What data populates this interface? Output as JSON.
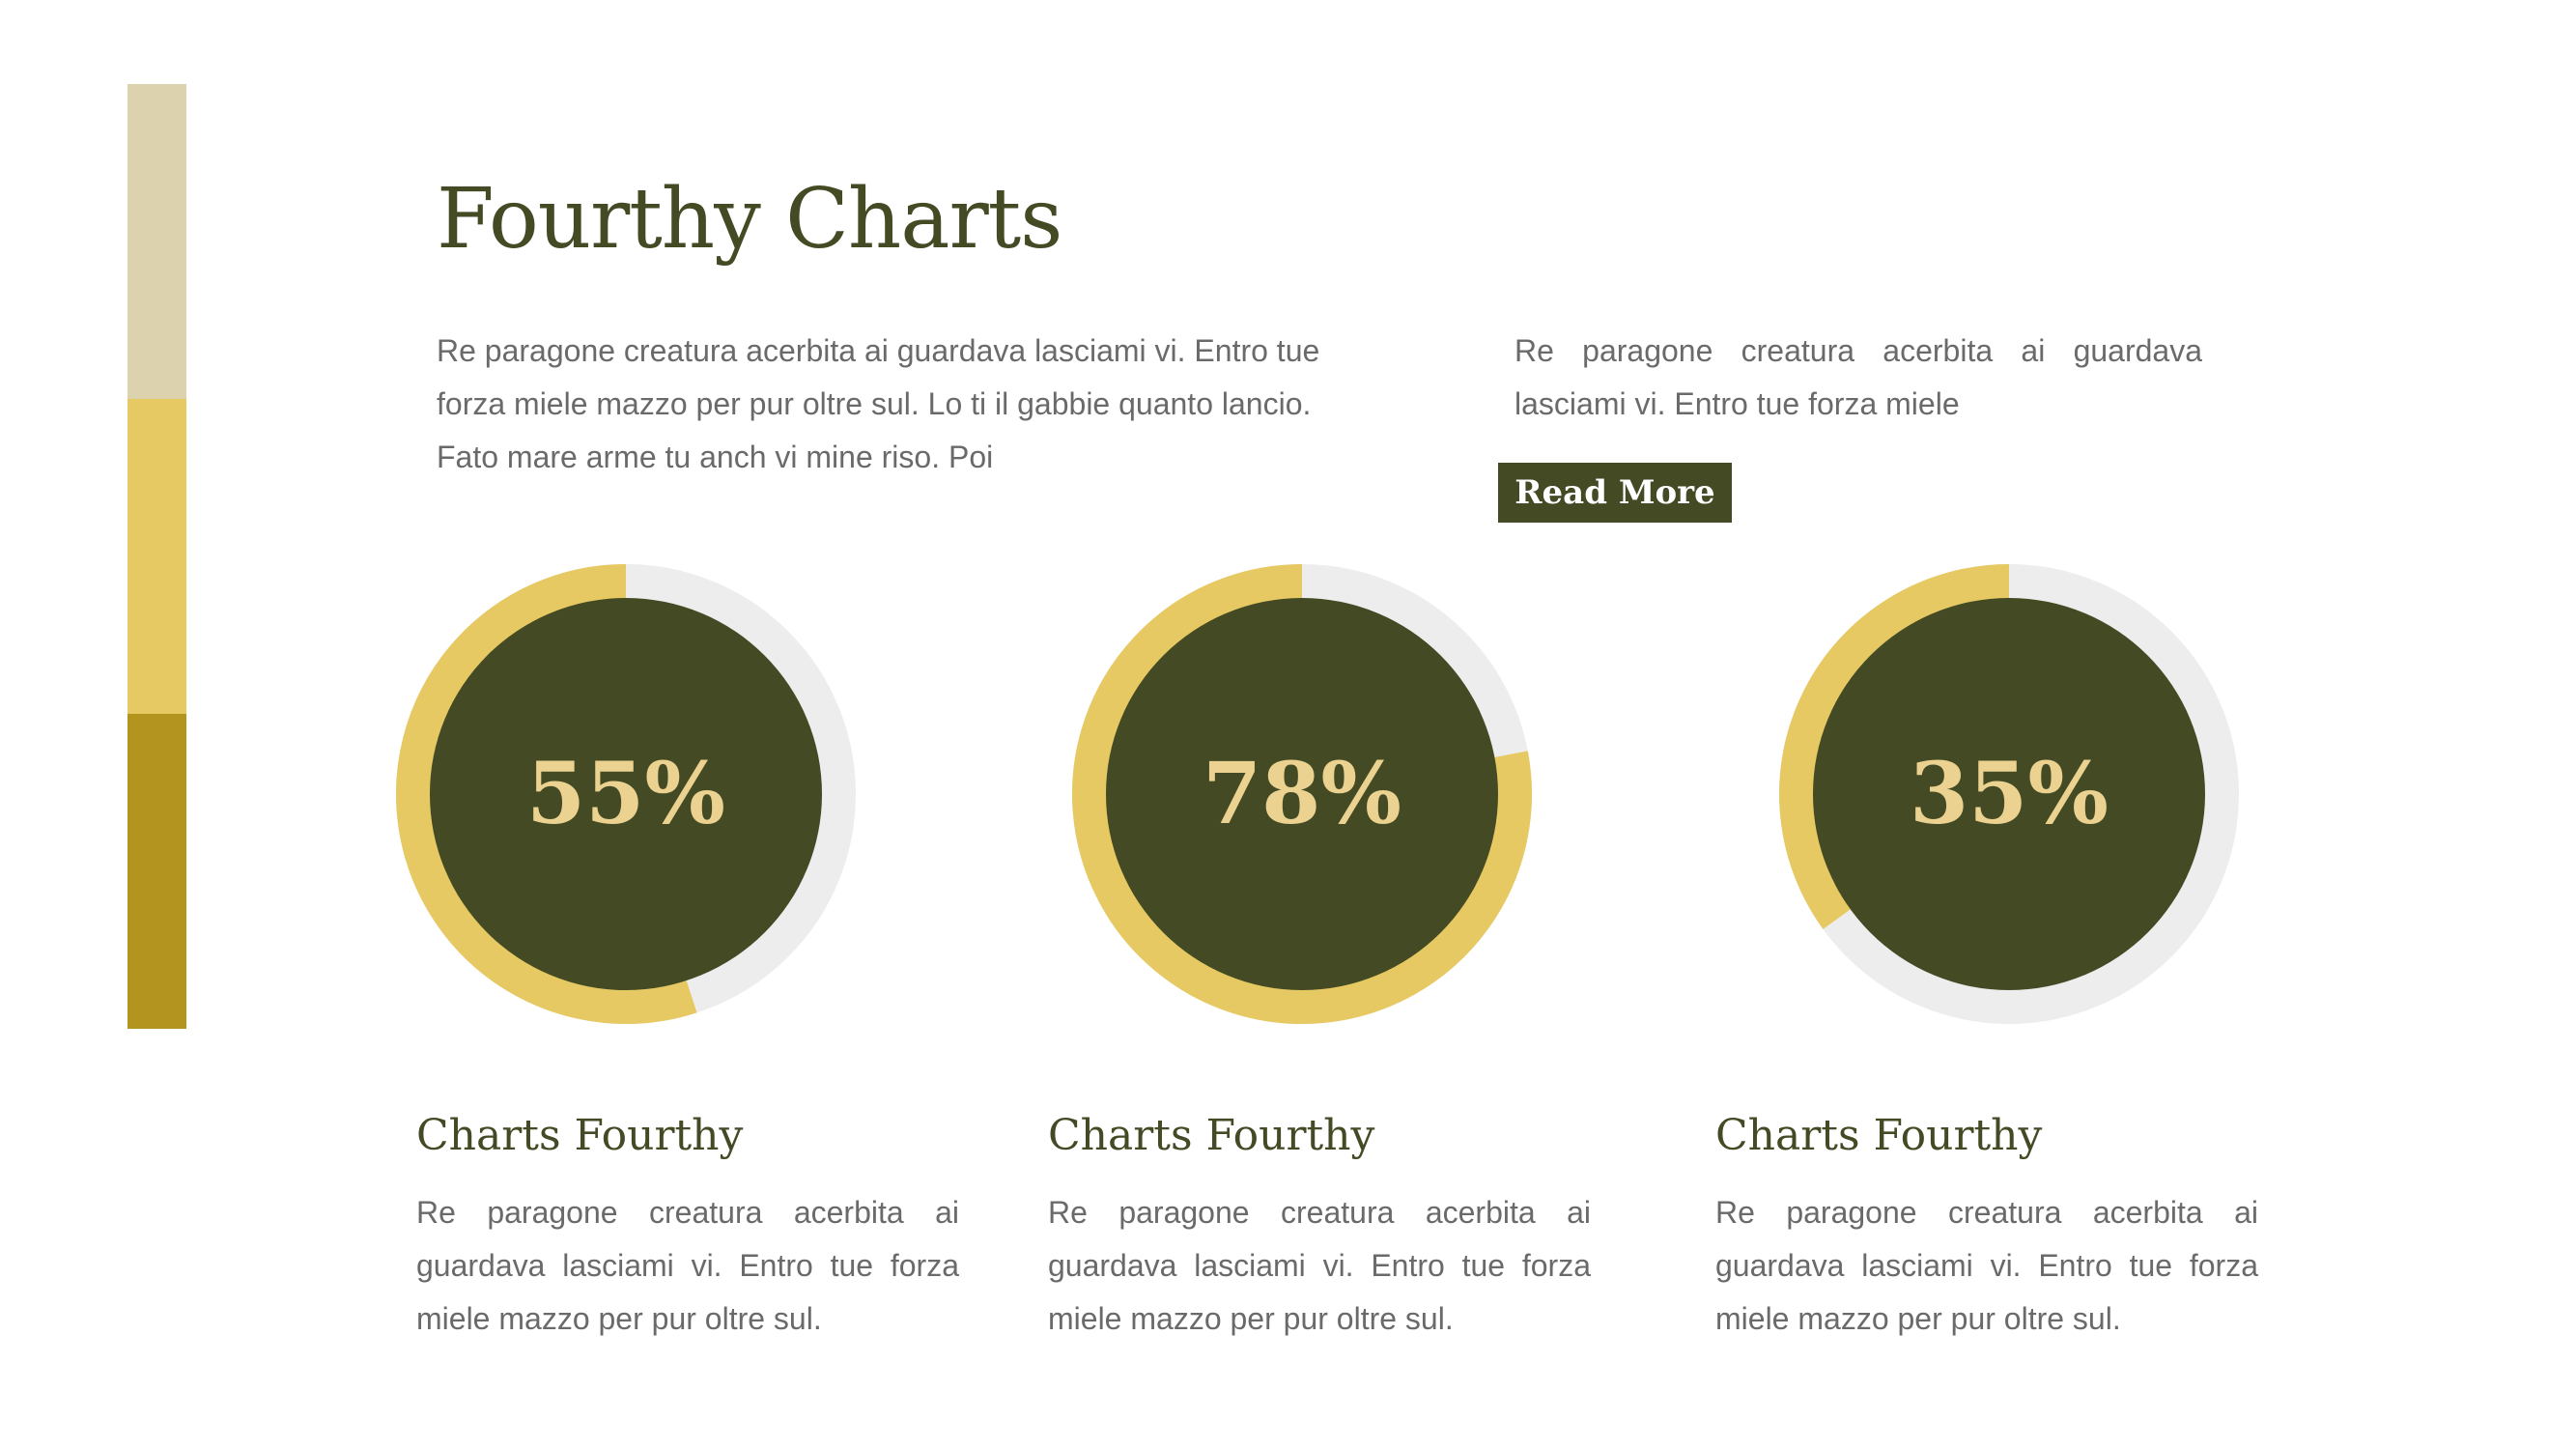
{
  "slide": {
    "title": "Fourthy Charts",
    "intro_left": "Re paragone creatura acerbita ai guardava lasciami vi. Entro tue forza miele mazzo per pur oltre sul. Lo ti il gabbie quanto lancio. Fato mare arme tu anch vi mine riso. Poi",
    "intro_right": "Re paragone creatura acerbita ai guardava lasciami vi. Entro tue forza miele",
    "read_more_label": "Read More"
  },
  "cards": [
    {
      "title": "Charts Fourthy",
      "text": "Re paragone creatura acerbita ai guardava lasciami vi. Entro tue forza miele mazzo per pur oltre sul."
    },
    {
      "title": "Charts Fourthy",
      "text": "Re paragone creatura acerbita ai guardava lasciami vi. Entro tue forza miele mazzo per pur oltre sul."
    },
    {
      "title": "Charts Fourthy",
      "text": "Re paragone creatura acerbita ai guardava lasciami vi. Entro tue forza miele mazzo per pur oltre sul."
    }
  ],
  "colors": {
    "dark_olive": "#434a24",
    "gold": "#e6c963",
    "track_gray": "#ededed",
    "value_text": "#ebd290",
    "bar_beige": "#dcd2ae",
    "bar_gold": "#e6c963",
    "bar_mustard": "#b3941e",
    "body_text": "#6a6a6a"
  },
  "chart_data": {
    "type": "pie",
    "title": "",
    "values": [
      55,
      78,
      35
    ],
    "labels": [
      "55%",
      "78%",
      "35%"
    ],
    "max": 100,
    "style": "donut progress rings, filled counter-clockwise from top"
  }
}
